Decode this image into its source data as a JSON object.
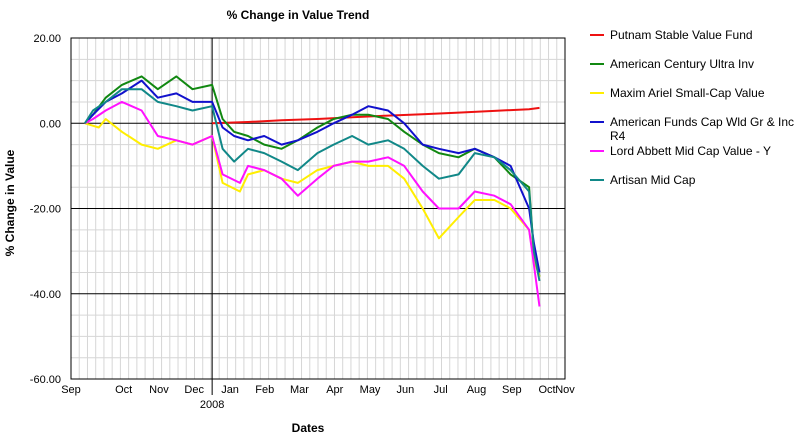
{
  "chart_data": {
    "type": "line",
    "title": "% Change in Value Trend",
    "xlabel": "Dates",
    "ylabel": "% Change in Value",
    "ylim": [
      -60,
      20
    ],
    "y_ticks": [
      "20.00",
      "0.00",
      "-20.00",
      "-40.00",
      "-60.00"
    ],
    "x_ticks": [
      "Sep",
      "Oct",
      "Nov",
      "Dec",
      "Jan",
      "Feb",
      "Mar",
      "Apr",
      "May",
      "Jun",
      "Jul",
      "Aug",
      "Sep",
      "Oct",
      "Nov"
    ],
    "x_year_label": "2008",
    "xlim": [
      "2007-09-01",
      "2008-11-01"
    ],
    "grid": true,
    "legend_position": "right",
    "series": [
      {
        "name": "Putnam Stable Value Fund",
        "color": "#ee1111",
        "x": [
          "2008-01-01",
          "2008-02-01",
          "2008-03-01",
          "2008-04-01",
          "2008-05-01",
          "2008-06-01",
          "2008-07-01",
          "2008-08-01",
          "2008-09-01",
          "2008-10-01",
          "2008-10-10"
        ],
        "values": [
          0.0,
          0.3,
          0.7,
          1.0,
          1.4,
          1.8,
          2.1,
          2.5,
          2.9,
          3.3,
          3.6
        ]
      },
      {
        "name": "American Century Ultra Inv",
        "color": "#118811",
        "x": [
          "2007-09-13",
          "2007-09-20",
          "2007-10-01",
          "2007-10-15",
          "2007-11-01",
          "2007-11-15",
          "2007-12-01",
          "2007-12-15",
          "2008-01-01",
          "2008-01-10",
          "2008-01-20",
          "2008-02-01",
          "2008-02-15",
          "2008-03-01",
          "2008-03-15",
          "2008-04-01",
          "2008-04-15",
          "2008-05-01",
          "2008-05-15",
          "2008-06-01",
          "2008-06-15",
          "2008-07-01",
          "2008-07-15",
          "2008-08-01",
          "2008-08-15",
          "2008-09-01",
          "2008-09-15",
          "2008-10-01",
          "2008-10-05",
          "2008-10-10"
        ],
        "values": [
          0.0,
          2.0,
          6.0,
          9.0,
          11.0,
          8.0,
          11.0,
          8.0,
          9.0,
          1.0,
          -2.0,
          -3.0,
          -5.0,
          -6.0,
          -4.0,
          -1.0,
          1.0,
          2.0,
          2.0,
          1.0,
          -2.0,
          -5.0,
          -7.0,
          -8.0,
          -6.0,
          -8.0,
          -12.0,
          -15.0,
          -30.0,
          -36.0
        ]
      },
      {
        "name": "Maxim Ariel Small-Cap Value",
        "color": "#ffee00",
        "x": [
          "2007-09-13",
          "2007-09-25",
          "2007-10-01",
          "2007-10-15",
          "2007-11-01",
          "2007-11-15",
          "2007-12-01",
          "2007-12-15",
          "2008-01-01",
          "2008-01-10",
          "2008-01-25",
          "2008-02-01",
          "2008-02-15",
          "2008-03-01",
          "2008-03-15",
          "2008-04-01",
          "2008-04-15",
          "2008-05-01",
          "2008-05-15",
          "2008-06-01",
          "2008-06-15",
          "2008-07-01",
          "2008-07-15",
          "2008-08-01",
          "2008-08-15",
          "2008-09-01",
          "2008-09-15",
          "2008-10-01",
          "2008-10-05",
          "2008-10-10"
        ],
        "values": [
          0.0,
          -1.0,
          1.0,
          -2.0,
          -5.0,
          -6.0,
          -4.0,
          -5.0,
          -3.0,
          -14.0,
          -16.0,
          -12.0,
          -11.0,
          -13.0,
          -14.0,
          -11.0,
          -10.0,
          -9.0,
          -10.0,
          -10.0,
          -13.0,
          -20.0,
          -27.0,
          -22.0,
          -18.0,
          -18.0,
          -20.0,
          -25.0,
          -32.0,
          -36.0
        ]
      },
      {
        "name": "American Funds Cap Wld Gr & Inc R4",
        "color": "#1111cc",
        "x": [
          "2007-09-13",
          "2007-09-20",
          "2007-10-01",
          "2007-10-15",
          "2007-11-01",
          "2007-11-15",
          "2007-12-01",
          "2007-12-15",
          "2008-01-01",
          "2008-01-10",
          "2008-01-20",
          "2008-02-01",
          "2008-02-15",
          "2008-03-01",
          "2008-03-15",
          "2008-04-01",
          "2008-04-15",
          "2008-05-01",
          "2008-05-15",
          "2008-06-01",
          "2008-06-15",
          "2008-07-01",
          "2008-07-15",
          "2008-08-01",
          "2008-08-15",
          "2008-09-01",
          "2008-09-15",
          "2008-10-01",
          "2008-10-05",
          "2008-10-10"
        ],
        "values": [
          0.0,
          2.0,
          5.0,
          7.0,
          10.0,
          6.0,
          7.0,
          5.0,
          5.0,
          -1.0,
          -3.0,
          -4.0,
          -3.0,
          -5.0,
          -4.0,
          -2.0,
          0.0,
          2.0,
          4.0,
          3.0,
          0.0,
          -5.0,
          -6.0,
          -7.0,
          -6.0,
          -8.0,
          -10.0,
          -20.0,
          -28.0,
          -35.0
        ]
      },
      {
        "name": "Lord Abbett Mid Cap Value - Y",
        "color": "#ff11ff",
        "x": [
          "2007-09-13",
          "2007-09-20",
          "2007-10-01",
          "2007-10-15",
          "2007-11-01",
          "2007-11-15",
          "2007-12-01",
          "2007-12-15",
          "2008-01-01",
          "2008-01-10",
          "2008-01-25",
          "2008-02-01",
          "2008-02-15",
          "2008-03-01",
          "2008-03-15",
          "2008-04-01",
          "2008-04-15",
          "2008-05-01",
          "2008-05-15",
          "2008-06-01",
          "2008-06-15",
          "2008-07-01",
          "2008-07-15",
          "2008-08-01",
          "2008-08-15",
          "2008-09-01",
          "2008-09-15",
          "2008-10-01",
          "2008-10-05",
          "2008-10-10"
        ],
        "values": [
          0.0,
          1.0,
          3.0,
          5.0,
          3.0,
          -3.0,
          -4.0,
          -5.0,
          -3.0,
          -12.0,
          -14.0,
          -10.0,
          -11.0,
          -13.0,
          -17.0,
          -13.0,
          -10.0,
          -9.0,
          -9.0,
          -8.0,
          -10.0,
          -16.0,
          -20.0,
          -20.0,
          -16.0,
          -17.0,
          -19.0,
          -25.0,
          -33.0,
          -43.0
        ]
      },
      {
        "name": "Artisan Mid Cap",
        "color": "#118888",
        "x": [
          "2007-09-13",
          "2007-09-20",
          "2007-10-01",
          "2007-10-15",
          "2007-11-01",
          "2007-11-15",
          "2007-12-01",
          "2007-12-15",
          "2008-01-01",
          "2008-01-10",
          "2008-01-20",
          "2008-02-01",
          "2008-02-15",
          "2008-03-01",
          "2008-03-15",
          "2008-04-01",
          "2008-04-15",
          "2008-05-01",
          "2008-05-15",
          "2008-06-01",
          "2008-06-15",
          "2008-07-01",
          "2008-07-15",
          "2008-08-01",
          "2008-08-15",
          "2008-09-01",
          "2008-09-15",
          "2008-10-01",
          "2008-10-05",
          "2008-10-10"
        ],
        "values": [
          0.0,
          3.0,
          5.0,
          8.0,
          8.0,
          5.0,
          4.0,
          3.0,
          4.0,
          -6.0,
          -9.0,
          -6.0,
          -7.0,
          -9.0,
          -11.0,
          -7.0,
          -5.0,
          -3.0,
          -5.0,
          -4.0,
          -6.0,
          -10.0,
          -13.0,
          -12.0,
          -7.0,
          -8.0,
          -11.0,
          -16.0,
          -30.0,
          -37.0
        ]
      }
    ]
  }
}
